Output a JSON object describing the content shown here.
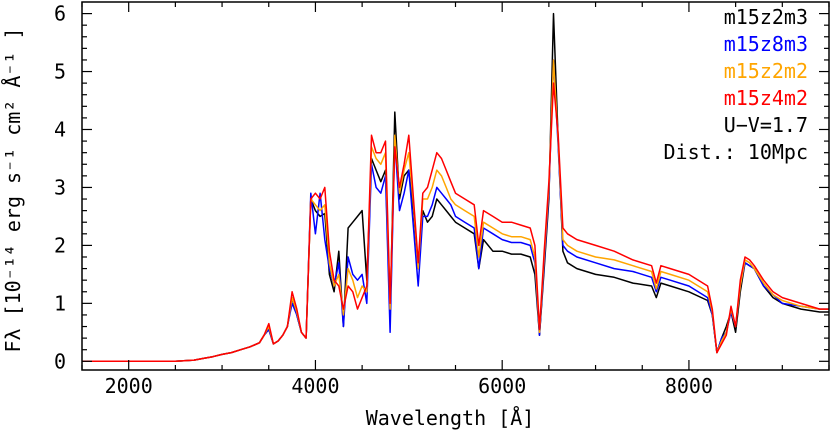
{
  "chart_data": {
    "type": "line",
    "title": "",
    "xlabel": "Wavelength [Å]",
    "ylabel": "Fλ [10⁻¹⁴ erg s⁻¹ cm² Å⁻¹ ]",
    "xlim": [
      1500,
      9500
    ],
    "ylim": [
      -0.15,
      6.2
    ],
    "xticks": [
      2000,
      4000,
      6000,
      8000
    ],
    "yticks": [
      0,
      1,
      2,
      3,
      4,
      5,
      6
    ],
    "grid": false,
    "legend_position": "top-right",
    "annotations": [
      "U−V=1.7",
      "Dist.: 10Mpc"
    ],
    "x": [
      1500,
      2500,
      2700,
      2800,
      2900,
      3000,
      3100,
      3200,
      3300,
      3400,
      3450,
      3500,
      3550,
      3600,
      3650,
      3700,
      3750,
      3800,
      3850,
      3900,
      3950,
      4000,
      4050,
      4100,
      4150,
      4200,
      4250,
      4300,
      4350,
      4400,
      4450,
      4500,
      4550,
      4600,
      4650,
      4700,
      4750,
      4800,
      4850,
      4900,
      4950,
      5000,
      5050,
      5100,
      5150,
      5200,
      5250,
      5300,
      5350,
      5400,
      5450,
      5500,
      5600,
      5700,
      5750,
      5800,
      5900,
      6000,
      6100,
      6200,
      6300,
      6350,
      6400,
      6450,
      6500,
      6550,
      6600,
      6650,
      6700,
      6800,
      7000,
      7200,
      7400,
      7600,
      7650,
      7700,
      7800,
      8000,
      8200,
      8250,
      8300,
      8350,
      8400,
      8450,
      8500,
      8550,
      8600,
      8650,
      8700,
      8800,
      8900,
      9000,
      9200,
      9400,
      9500
    ],
    "series": [
      {
        "name": "m15z2m3",
        "color": "#000000",
        "values": [
          0,
          0,
          0.02,
          0.05,
          0.08,
          0.12,
          0.15,
          0.2,
          0.25,
          0.32,
          0.45,
          0.55,
          0.3,
          0.35,
          0.45,
          0.6,
          1.1,
          0.8,
          0.5,
          0.4,
          2.8,
          2.6,
          2.5,
          2.55,
          1.5,
          1.2,
          1.9,
          0.6,
          2.3,
          2.4,
          2.5,
          2.6,
          1.4,
          3.5,
          3.3,
          3.1,
          3.3,
          0.8,
          4.3,
          2.8,
          3.2,
          3.3,
          2.6,
          1.6,
          2.6,
          2.4,
          2.5,
          2.8,
          2.7,
          2.6,
          2.5,
          2.4,
          2.3,
          2.2,
          1.6,
          2.1,
          1.9,
          1.9,
          1.85,
          1.85,
          1.8,
          1.5,
          0.45,
          1.6,
          2.8,
          6.0,
          3.8,
          1.9,
          1.7,
          1.6,
          1.5,
          1.45,
          1.35,
          1.3,
          1.1,
          1.35,
          1.3,
          1.2,
          1.05,
          0.8,
          0.15,
          0.4,
          0.6,
          0.85,
          0.5,
          1.2,
          1.7,
          1.65,
          1.6,
          1.3,
          1.1,
          1.0,
          0.9,
          0.85,
          0.85
        ]
      },
      {
        "name": "m15z8m3",
        "color": "#0000ff",
        "values": [
          0,
          0,
          0.02,
          0.05,
          0.08,
          0.12,
          0.15,
          0.2,
          0.25,
          0.32,
          0.45,
          0.55,
          0.3,
          0.35,
          0.45,
          0.6,
          1.0,
          0.8,
          0.5,
          0.4,
          2.9,
          2.2,
          2.9,
          2.1,
          1.6,
          1.3,
          1.7,
          0.6,
          1.8,
          1.5,
          1.4,
          1.5,
          1.0,
          3.4,
          3.0,
          2.9,
          3.2,
          0.5,
          3.8,
          2.6,
          2.9,
          3.3,
          2.3,
          1.3,
          2.5,
          2.5,
          2.7,
          3.0,
          2.9,
          2.8,
          2.7,
          2.5,
          2.4,
          2.3,
          1.6,
          2.3,
          2.2,
          2.1,
          2.05,
          2.05,
          2.0,
          1.7,
          0.45,
          1.7,
          2.9,
          5.2,
          3.7,
          2.0,
          1.9,
          1.8,
          1.7,
          1.6,
          1.55,
          1.45,
          1.2,
          1.45,
          1.4,
          1.3,
          1.1,
          0.8,
          0.15,
          0.4,
          0.5,
          0.85,
          0.6,
          1.3,
          1.7,
          1.65,
          1.6,
          1.3,
          1.15,
          1.0,
          0.95,
          0.9,
          0.9
        ]
      },
      {
        "name": "m15z2m2",
        "color": "#ffa500",
        "values": [
          0,
          0,
          0.02,
          0.05,
          0.08,
          0.12,
          0.15,
          0.2,
          0.25,
          0.32,
          0.45,
          0.6,
          0.3,
          0.35,
          0.45,
          0.6,
          1.1,
          0.85,
          0.5,
          0.4,
          2.8,
          2.7,
          2.6,
          2.7,
          1.7,
          1.3,
          1.5,
          0.8,
          1.6,
          1.4,
          1.1,
          1.3,
          1.2,
          3.7,
          3.5,
          3.4,
          3.6,
          0.9,
          3.9,
          2.9,
          3.3,
          3.6,
          2.7,
          1.6,
          2.8,
          2.8,
          3.0,
          3.3,
          3.2,
          3.0,
          2.8,
          2.7,
          2.6,
          2.5,
          1.8,
          2.4,
          2.3,
          2.2,
          2.15,
          2.15,
          2.1,
          1.8,
          0.5,
          1.8,
          3.0,
          5.2,
          3.8,
          2.1,
          2.0,
          1.9,
          1.8,
          1.75,
          1.65,
          1.55,
          1.25,
          1.55,
          1.5,
          1.4,
          1.2,
          0.85,
          0.15,
          0.35,
          0.5,
          0.9,
          0.6,
          1.3,
          1.75,
          1.7,
          1.6,
          1.35,
          1.15,
          1.05,
          0.95,
          0.9,
          0.9
        ]
      },
      {
        "name": "m15z4m2",
        "color": "#ff0000",
        "values": [
          0,
          0,
          0.02,
          0.05,
          0.08,
          0.12,
          0.15,
          0.2,
          0.25,
          0.32,
          0.45,
          0.65,
          0.3,
          0.35,
          0.45,
          0.6,
          1.2,
          0.9,
          0.5,
          0.4,
          2.8,
          2.9,
          2.8,
          3.0,
          1.9,
          1.4,
          1.3,
          0.9,
          1.3,
          1.2,
          0.9,
          1.1,
          1.3,
          3.9,
          3.6,
          3.6,
          3.8,
          1.0,
          3.7,
          3.0,
          3.4,
          3.9,
          2.8,
          1.7,
          2.9,
          3.0,
          3.3,
          3.6,
          3.5,
          3.3,
          3.1,
          2.9,
          2.8,
          2.7,
          2.0,
          2.6,
          2.5,
          2.4,
          2.4,
          2.35,
          2.3,
          2.0,
          0.55,
          1.9,
          3.1,
          4.8,
          3.9,
          2.3,
          2.2,
          2.1,
          2.0,
          1.9,
          1.75,
          1.65,
          1.35,
          1.65,
          1.6,
          1.5,
          1.3,
          0.9,
          0.15,
          0.3,
          0.45,
          0.95,
          0.6,
          1.4,
          1.8,
          1.75,
          1.65,
          1.4,
          1.2,
          1.1,
          1.0,
          0.9,
          0.9
        ]
      }
    ]
  }
}
